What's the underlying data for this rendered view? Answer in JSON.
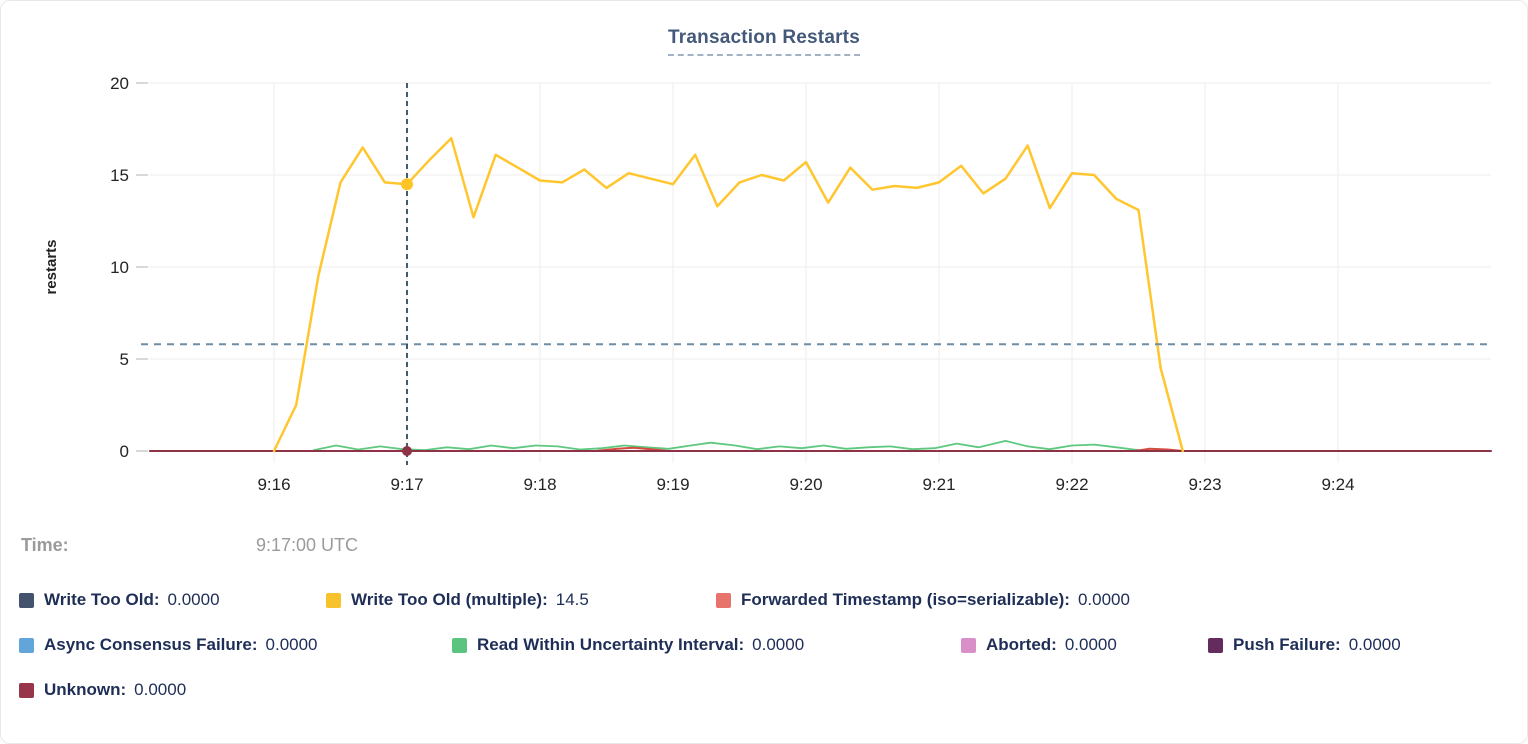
{
  "title": "Transaction Restarts",
  "tooltip": {
    "time_label": "Time:",
    "time_value": "9:17:00 UTC"
  },
  "legend": [
    {
      "label": "Write Too Old:",
      "value": "0.0000",
      "color": "#44536d"
    },
    {
      "label": "Write Too Old (multiple):",
      "value": "14.5",
      "color": "#f8c22c"
    },
    {
      "label": "Forwarded Timestamp (iso=serializable):",
      "value": "0.0000",
      "color": "#e8736c"
    },
    {
      "label": "Async Consensus Failure:",
      "value": "0.0000",
      "color": "#62a5db"
    },
    {
      "label": "Read Within Uncertainty Interval:",
      "value": "0.0000",
      "color": "#5bc57f"
    },
    {
      "label": "Aborted:",
      "value": "0.0000",
      "color": "#d98fc8"
    },
    {
      "label": "Push Failure:",
      "value": "0.0000",
      "color": "#632c5c"
    },
    {
      "label": "Unknown:",
      "value": "0.0000",
      "color": "#97354a"
    }
  ],
  "chart_data": {
    "type": "line",
    "title": "Transaction Restarts",
    "xlabel": "",
    "ylabel": "restarts",
    "ylim": [
      0,
      20
    ],
    "y_ticks": [
      0,
      5,
      10,
      15,
      20
    ],
    "x_ticks": [
      {
        "t": 60,
        "label": "9:16"
      },
      {
        "t": 120,
        "label": "9:17"
      },
      {
        "t": 180,
        "label": "9:18"
      },
      {
        "t": 240,
        "label": "9:19"
      },
      {
        "t": 300,
        "label": "9:20"
      },
      {
        "t": 360,
        "label": "9:21"
      },
      {
        "t": 420,
        "label": "9:22"
      },
      {
        "t": 480,
        "label": "9:23"
      },
      {
        "t": 540,
        "label": "9:24"
      }
    ],
    "x_domain_note": "t = seconds after 9:15:00 UTC; visible domain approx 9:15:04 to 9:25:09",
    "grid": true,
    "avg_line": 5.8,
    "hover": {
      "t": 120,
      "time": "9:17:00 UTC",
      "points": [
        {
          "series": "Write Too Old (multiple)",
          "value": 14.5,
          "color": "#ffc425",
          "r": 6
        },
        {
          "series": "Unknown",
          "value": 0,
          "color": "#8e3245",
          "r": 5
        }
      ]
    },
    "series": [
      {
        "name": "Read Within Uncertainty Interval",
        "color": "#5ec87e",
        "width": 1.8,
        "points": [
          [
            78,
            0.05
          ],
          [
            88,
            0.3
          ],
          [
            98,
            0.08
          ],
          [
            108,
            0.25
          ],
          [
            118,
            0.1
          ],
          [
            128,
            0.05
          ],
          [
            138,
            0.2
          ],
          [
            148,
            0.1
          ],
          [
            158,
            0.3
          ],
          [
            168,
            0.15
          ],
          [
            178,
            0.3
          ],
          [
            188,
            0.25
          ],
          [
            198,
            0.08
          ],
          [
            208,
            0.15
          ],
          [
            218,
            0.3
          ],
          [
            228,
            0.2
          ],
          [
            238,
            0.12
          ],
          [
            248,
            0.3
          ],
          [
            257,
            0.45
          ],
          [
            268,
            0.3
          ],
          [
            278,
            0.1
          ],
          [
            288,
            0.25
          ],
          [
            298,
            0.15
          ],
          [
            308,
            0.3
          ],
          [
            318,
            0.12
          ],
          [
            328,
            0.2
          ],
          [
            338,
            0.25
          ],
          [
            348,
            0.1
          ],
          [
            358,
            0.15
          ],
          [
            368,
            0.4
          ],
          [
            378,
            0.2
          ],
          [
            390,
            0.55
          ],
          [
            400,
            0.25
          ],
          [
            410,
            0.1
          ],
          [
            420,
            0.3
          ],
          [
            430,
            0.35
          ],
          [
            440,
            0.2
          ],
          [
            450,
            0.05
          ]
        ]
      },
      {
        "name": "Forwarded Timestamp (iso=serializable)",
        "color": "#d24b3e",
        "width": 2,
        "segments": [
          [
            [
              205,
              0
            ],
            [
              215,
              0.12
            ],
            [
              222,
              0.18
            ],
            [
              230,
              0.1
            ],
            [
              238,
              0
            ]
          ],
          [
            [
              448,
              0
            ],
            [
              455,
              0.12
            ],
            [
              463,
              0.08
            ],
            [
              470,
              0
            ]
          ]
        ]
      },
      {
        "name": "Unknown / zero-valued series baseline",
        "color": "#8e3245",
        "width": 2,
        "points": [
          [
            4,
            0
          ],
          [
            609,
            0
          ]
        ]
      },
      {
        "name": "Write Too Old (multiple)",
        "color": "#ffc62f",
        "width": 2.5,
        "points": [
          [
            60,
            0
          ],
          [
            70,
            2.5
          ],
          [
            80,
            9.5
          ],
          [
            90,
            14.6
          ],
          [
            100,
            16.5
          ],
          [
            110,
            14.6
          ],
          [
            120,
            14.5
          ],
          [
            130,
            15.8
          ],
          [
            140,
            17.0
          ],
          [
            150,
            12.7
          ],
          [
            160,
            16.1
          ],
          [
            170,
            15.4
          ],
          [
            180,
            14.7
          ],
          [
            190,
            14.6
          ],
          [
            200,
            15.3
          ],
          [
            210,
            14.3
          ],
          [
            220,
            15.1
          ],
          [
            230,
            14.8
          ],
          [
            240,
            14.5
          ],
          [
            250,
            16.1
          ],
          [
            260,
            13.3
          ],
          [
            270,
            14.6
          ],
          [
            280,
            15.0
          ],
          [
            290,
            14.7
          ],
          [
            300,
            15.7
          ],
          [
            310,
            13.5
          ],
          [
            320,
            15.4
          ],
          [
            330,
            14.2
          ],
          [
            340,
            14.4
          ],
          [
            350,
            14.3
          ],
          [
            360,
            14.6
          ],
          [
            370,
            15.5
          ],
          [
            380,
            14.0
          ],
          [
            390,
            14.8
          ],
          [
            400,
            16.6
          ],
          [
            410,
            13.2
          ],
          [
            420,
            15.1
          ],
          [
            430,
            15.0
          ],
          [
            440,
            13.7
          ],
          [
            450,
            13.1
          ],
          [
            460,
            4.5
          ],
          [
            470,
            0
          ]
        ]
      }
    ]
  }
}
